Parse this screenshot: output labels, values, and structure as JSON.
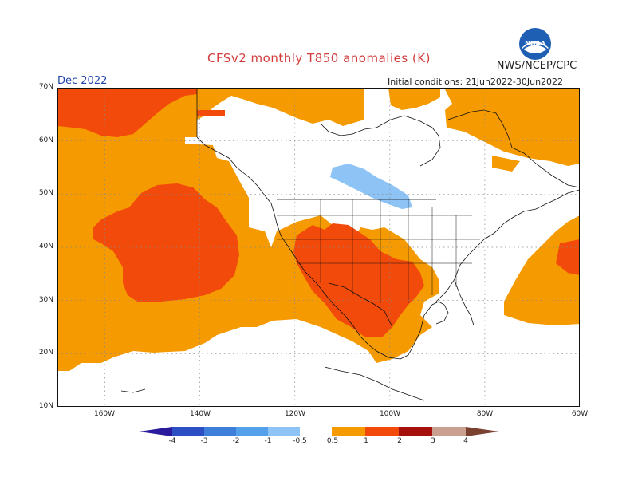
{
  "title": "CFSv2 monthly T850 anomalies (K)",
  "org": "NWS/NCEP/CPC",
  "logo_text": "NOAA",
  "month": "Dec 2022",
  "initial_conditions": "Initial conditions: 21Jun2022-30Jun2022",
  "lat_labels": [
    "70N",
    "60N",
    "50N",
    "40N",
    "30N",
    "20N",
    "10N"
  ],
  "lon_labels": [
    "160W",
    "140W",
    "120W",
    "100W",
    "80W",
    "60W"
  ],
  "colorbar": {
    "labels": [
      "-4",
      "-3",
      "-2",
      "-1",
      "-0.5",
      "0.5",
      "1",
      "2",
      "3",
      "4"
    ],
    "colors": [
      "#2a1a9c",
      "#2c4fc4",
      "#3d7fd9",
      "#55a0ea",
      "#8ec4f5",
      "#ffffff",
      "#f59a00",
      "#f24a0a",
      "#a5100c",
      "#c9a090",
      "#7a4030"
    ]
  }
}
